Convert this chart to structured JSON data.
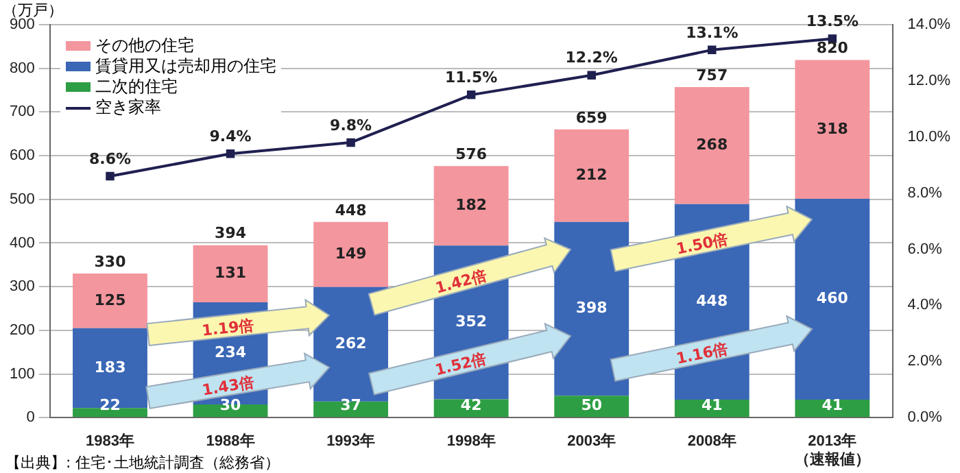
{
  "chart_data": {
    "type": "bar",
    "stacked": true,
    "ylabel": "（万戸）",
    "categories": [
      "1983年",
      "1988年",
      "1993年",
      "1998年",
      "2003年",
      "2008年",
      "2013年（速報値）"
    ],
    "series": [
      {
        "name": "二次的住宅",
        "color": "#2e9e44",
        "values": [
          22,
          30,
          37,
          42,
          50,
          41,
          41
        ]
      },
      {
        "name": "賃貸用又は売却用の住宅",
        "color": "#3a67b6",
        "values": [
          183,
          234,
          262,
          352,
          398,
          448,
          460
        ]
      },
      {
        "name": "その他の住宅",
        "color": "#f4969e",
        "values": [
          125,
          131,
          149,
          182,
          212,
          268,
          318
        ]
      },
      {
        "name": "空き家率",
        "type": "line",
        "axis": "y2",
        "color": "#1f2050",
        "values": [
          8.6,
          9.4,
          9.8,
          11.5,
          12.2,
          13.1,
          13.5
        ],
        "value_labels": [
          "8.6%",
          "9.4%",
          "9.8%",
          "11.5%",
          "12.2%",
          "13.1%",
          "13.5%"
        ]
      }
    ],
    "data_labels": true,
    "totals": [
      "330",
      "394",
      "448",
      "576",
      "659",
      "757",
      "820"
    ],
    "ylim": [
      0,
      900
    ],
    "yticks": [
      0,
      100,
      200,
      300,
      400,
      500,
      600,
      700,
      800,
      900
    ],
    "y2lim": [
      0,
      14
    ],
    "y2ticks": [
      {
        "value": 0,
        "label": "0.0%"
      },
      {
        "value": 2,
        "label": "2.0%"
      },
      {
        "value": 4,
        "label": "4.0%"
      },
      {
        "value": 6,
        "label": "6.0%"
      },
      {
        "value": 8,
        "label": "8.0%"
      },
      {
        "value": 10,
        "label": "10.0%"
      },
      {
        "value": 12,
        "label": "12.0%"
      },
      {
        "value": 14,
        "label": "14.0%"
      }
    ],
    "grid": "y",
    "legend": "top left",
    "marker": "square",
    "line_style": "solid",
    "annotations": [
      "1.43倍",
      "1.19倍",
      "1.52倍",
      "1.42倍",
      "1.16倍",
      "1.50倍",
      "【出典】: 住宅･土地統計調査（総務省）"
    ]
  }
}
